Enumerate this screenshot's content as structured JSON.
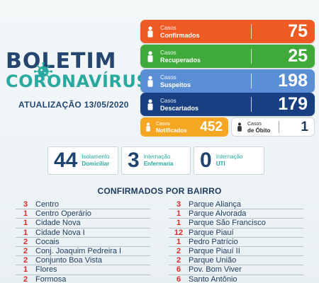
{
  "header": {
    "title": "BOLETIM",
    "subtitle": "CORONAVÍRUS",
    "update": "ATUALIZAÇÃO 13/05/2020"
  },
  "stats": {
    "confirmados": {
      "label1": "Casos",
      "label2": "Confirmados",
      "value": "75",
      "color": "#ee5a24"
    },
    "recuperados": {
      "label1": "Casos",
      "label2": "Recuperados",
      "value": "25",
      "color": "#3faa3a"
    },
    "suspeitos": {
      "label1": "Casos",
      "label2": "Suspeitos",
      "value": "198",
      "color": "#5a8fd6"
    },
    "descartados": {
      "label1": "Casos",
      "label2": "Descartados",
      "value": "179",
      "color": "#173f82"
    },
    "notificados": {
      "label1": "Casos",
      "label2": "Notificados",
      "value": "452",
      "color": "#f5a623"
    },
    "obito": {
      "label1": "Casos",
      "label2": "de Óbito",
      "value": "1"
    }
  },
  "hospital": {
    "isolamento": {
      "value": "44",
      "label1": "Isolamento",
      "label2": "Domiciliar"
    },
    "enfermaria": {
      "value": "3",
      "label1": "Internação",
      "label2": "Enfermaria"
    },
    "uti": {
      "value": "0",
      "label1": "Internação",
      "label2": "UTI"
    }
  },
  "bairros": {
    "title": "CONFIRMADOS POR BAIRRO",
    "left": [
      {
        "count": "3",
        "name": "Centro"
      },
      {
        "count": "1",
        "name": "Centro Operário"
      },
      {
        "count": "1",
        "name": "Cidade Nova"
      },
      {
        "count": "1",
        "name": "Cidade Nova I"
      },
      {
        "count": "2",
        "name": "Cocais"
      },
      {
        "count": "2",
        "name": "Conj. Joaquim Pedreira I"
      },
      {
        "count": "2",
        "name": "Conjunto Boa Vista"
      },
      {
        "count": "1",
        "name": "Flores"
      },
      {
        "count": "2",
        "name": "Formosa"
      }
    ],
    "right": [
      {
        "count": "3",
        "name": "Parque Aliança"
      },
      {
        "count": "1",
        "name": "Parque Alvorada"
      },
      {
        "count": "1",
        "name": "Parque São Francisco"
      },
      {
        "count": "12",
        "name": "Parque Piauí"
      },
      {
        "count": "1",
        "name": "Pedro Patrício"
      },
      {
        "count": "2",
        "name": "Parque Piauí II"
      },
      {
        "count": "2",
        "name": "Parque União"
      },
      {
        "count": "6",
        "name": "Pov. Bom Viver"
      },
      {
        "count": "6",
        "name": "Santo Antônio"
      }
    ]
  },
  "icons": {
    "person": "person-icon",
    "virus": "virus-icon"
  }
}
